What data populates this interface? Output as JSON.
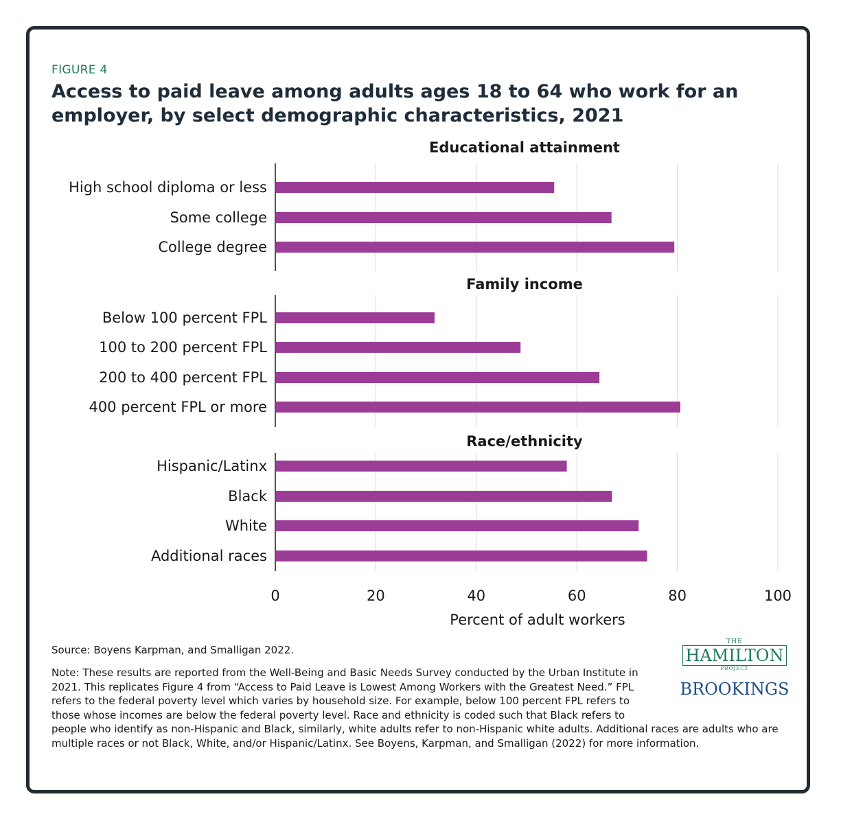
{
  "figure_label": "FIGURE 4",
  "title": "Access to paid leave among adults ages 18 to 64 who work for an employer, by select demographic characteristics, 2021",
  "source": "Source: Boyens Karpman, and Smalligan 2022.",
  "note": "Note: These results are reported from the Well-Being and Basic Needs Survey conducted by the Urban Institute in 2021. This replicates Figure 4 from “Access to Paid Leave is Lowest Among Workers with the Greatest Need.” FPL refers to the federal poverty level which varies by household size. For example, below 100 percent FPL refers to those whose incomes are below the federal poverty level. Race and ethnicity is coded such that Black refers to people who identify as non-Hispanic and Black, similarly, white adults refer to non-Hispanic white adults. Additional races are adults who are multiple races or not Black, White, and/or Hispanic/Latinx. See Boyens, Karpman, and Smalligan (2022) for more information.",
  "logo": {
    "the": "THE",
    "name": "HAMILTON",
    "project": "PROJECT",
    "brookings": "BROOKINGS"
  },
  "colors": {
    "bar": "#9b3d97",
    "grid": "#d9d9d9",
    "axis": "#555555",
    "accent": "#1e7a5e",
    "frame": "#222a33"
  },
  "chart_data": {
    "type": "bar",
    "orientation": "horizontal",
    "xlabel": "Percent of adult workers",
    "xlim": [
      0,
      100
    ],
    "xticks": [
      0,
      20,
      40,
      60,
      80,
      100
    ],
    "grid": true,
    "panels": [
      {
        "title": "Educational attainment",
        "categories": [
          "High school diploma or less",
          "Some college",
          "College degree"
        ],
        "values": [
          55.5,
          66.9,
          79.4
        ]
      },
      {
        "title": "Family income",
        "categories": [
          "Below 100 percent FPL",
          "100 to 200 percent FPL",
          "200 to 400 percent FPL",
          "400 percent FPL or more"
        ],
        "values": [
          31.7,
          48.8,
          64.5,
          80.6
        ]
      },
      {
        "title": "Race/ethnicity",
        "categories": [
          "Hispanic/Latinx",
          "Black",
          "White",
          "Additional races"
        ],
        "values": [
          58.0,
          67.0,
          72.3,
          74.0
        ]
      }
    ]
  }
}
